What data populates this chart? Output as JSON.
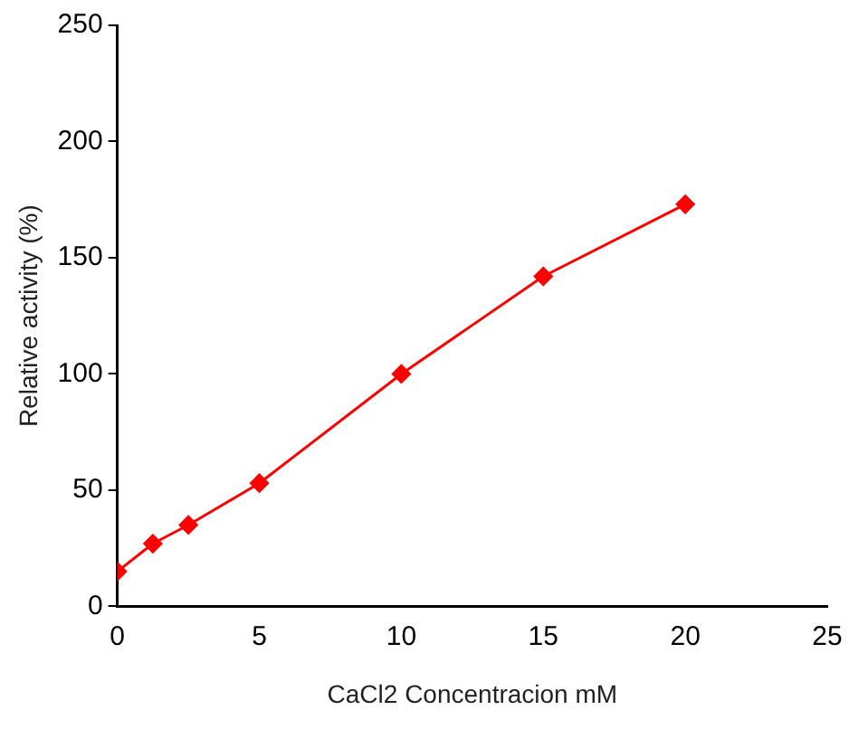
{
  "chart_data": {
    "type": "line",
    "xlabel": "CaCl2 Concentracion mM",
    "ylabel": "Relative activity (%)",
    "x": [
      0,
      1.25,
      2.5,
      5,
      10,
      15,
      20
    ],
    "series": [
      {
        "color": "#ff0000",
        "values": [
          15,
          27,
          35,
          53,
          100,
          142,
          173
        ]
      }
    ],
    "xlim": [
      0,
      25
    ],
    "xticks": [
      0,
      5,
      10,
      15,
      20,
      25
    ],
    "ylim": [
      0,
      250
    ],
    "yticks": [
      0,
      50,
      100,
      150,
      200,
      250
    ],
    "grid": false,
    "legend": false,
    "marker": "diamond",
    "line_style": "solid"
  }
}
